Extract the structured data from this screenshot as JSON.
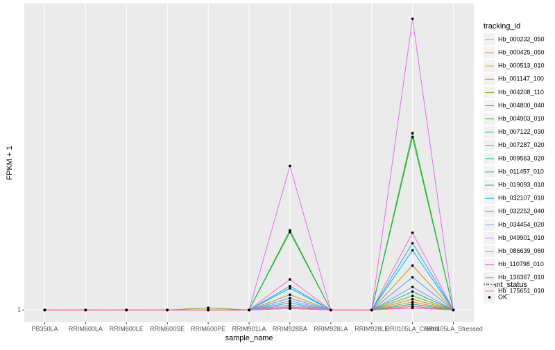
{
  "chart_data": {
    "type": "line",
    "x_label": "sample_name",
    "y_label": "FPKM + 1",
    "categories": [
      "PB350LA",
      "RRIM600LA",
      "RRIM600LE",
      "RRIM600SE",
      "RRIM600PE",
      "RRIM901LA",
      "RRIM928BA",
      "RRIM928LA",
      "RRIM928LE",
      "RRII105LA_Control",
      "RRII105LA_Stressed"
    ],
    "ylim": [
      0.6,
      11
    ],
    "yticks": [
      1
    ],
    "grid": true,
    "legend_title": "tracking_id",
    "points": {
      "title": "quant_status",
      "labels": [
        "OK"
      ],
      "color": "#000000"
    },
    "series": [
      {
        "name": "Hb_000232_050",
        "color": "#F8766D",
        "values": [
          1,
          1,
          1,
          1,
          1,
          1,
          1.05,
          1,
          1,
          1.12,
          1
        ]
      },
      {
        "name": "Hb_000425_050",
        "color": "#EA8331",
        "values": [
          1,
          1,
          1,
          1,
          1,
          1,
          1.1,
          1,
          1,
          1.26,
          1
        ]
      },
      {
        "name": "Hb_000513_010",
        "color": "#D89000",
        "values": [
          1,
          1,
          1,
          1,
          1,
          1,
          1.5,
          1,
          1,
          2.45,
          1
        ]
      },
      {
        "name": "Hb_001147_100",
        "color": "#C09B00",
        "values": [
          1,
          1,
          1,
          1,
          1,
          1,
          1.16,
          1,
          1,
          1.35,
          1
        ]
      },
      {
        "name": "Hb_004208_110",
        "color": "#A3A500",
        "values": [
          1,
          1,
          1,
          1,
          1,
          1,
          1.05,
          1,
          1,
          1.19,
          1
        ]
      },
      {
        "name": "Hb_004800_040",
        "color": "#7CAE00",
        "values": [
          1,
          1,
          1,
          1,
          1.07,
          1,
          1.1,
          1,
          1,
          1.46,
          1
        ]
      },
      {
        "name": "Hb_004903_010",
        "color": "#39B600",
        "values": [
          1,
          1,
          1,
          1,
          1,
          1,
          3.6,
          1,
          1,
          6.77,
          1
        ]
      },
      {
        "name": "Hb_007122_030",
        "color": "#00BB4E",
        "values": [
          1,
          1,
          1,
          1,
          1,
          1,
          3.54,
          1,
          1,
          6.64,
          1
        ]
      },
      {
        "name": "Hb_007287_020",
        "color": "#00BF7D",
        "values": [
          1,
          1,
          1,
          1,
          1,
          1,
          1.05,
          1,
          1,
          1.6,
          1
        ]
      },
      {
        "name": "Hb_009563_020",
        "color": "#00C1A3",
        "values": [
          1,
          1,
          1,
          1,
          1,
          1,
          1.1,
          1,
          1,
          1.12,
          1
        ]
      },
      {
        "name": "Hb_011457_010",
        "color": "#00BFC4",
        "values": [
          1,
          1,
          1,
          1,
          1,
          1,
          1.23,
          1,
          1,
          1.19,
          1
        ]
      },
      {
        "name": "Hb_019093_010",
        "color": "#00BAE0",
        "values": [
          1,
          1,
          1,
          1,
          1,
          1,
          1.78,
          1,
          1,
          3.18,
          1
        ]
      },
      {
        "name": "Hb_032107_010",
        "color": "#00B0F6",
        "values": [
          1,
          1,
          1,
          1,
          1,
          1,
          1.71,
          1,
          1,
          2.95,
          1
        ]
      },
      {
        "name": "Hb_032252_040",
        "color": "#35A2FF",
        "values": [
          1,
          1,
          1,
          1,
          1,
          1,
          1.39,
          1,
          1,
          2.07,
          1
        ]
      },
      {
        "name": "Hb_034454_020",
        "color": "#9590FF",
        "values": [
          1,
          1,
          1,
          1,
          1,
          1,
          1.3,
          1,
          1,
          1.75,
          1
        ]
      },
      {
        "name": "Hb_049901_010",
        "color": "#C77CFF",
        "values": [
          1,
          1,
          1,
          1,
          1,
          1,
          1.16,
          1,
          1,
          1.07,
          1
        ]
      },
      {
        "name": "Hb_086639_060",
        "color": "#E76BF3",
        "values": [
          1,
          1,
          1,
          1,
          1,
          1,
          5.7,
          1,
          1,
          10.5,
          1
        ]
      },
      {
        "name": "Hb_110798_010",
        "color": "#FA62DB",
        "values": [
          1,
          1,
          1,
          1,
          1,
          1,
          2.0,
          1,
          1,
          3.52,
          1
        ]
      },
      {
        "name": "Hb_136367_010",
        "color": "#FF62BC",
        "values": [
          1,
          1,
          1,
          1,
          1,
          1,
          1.05,
          1,
          1,
          1.07,
          1
        ]
      },
      {
        "name": "Hb_175651_010",
        "color": "#FF6C91",
        "values": [
          1,
          1,
          1,
          1,
          1,
          1,
          1.1,
          1,
          1,
          1.12,
          1
        ]
      }
    ]
  }
}
